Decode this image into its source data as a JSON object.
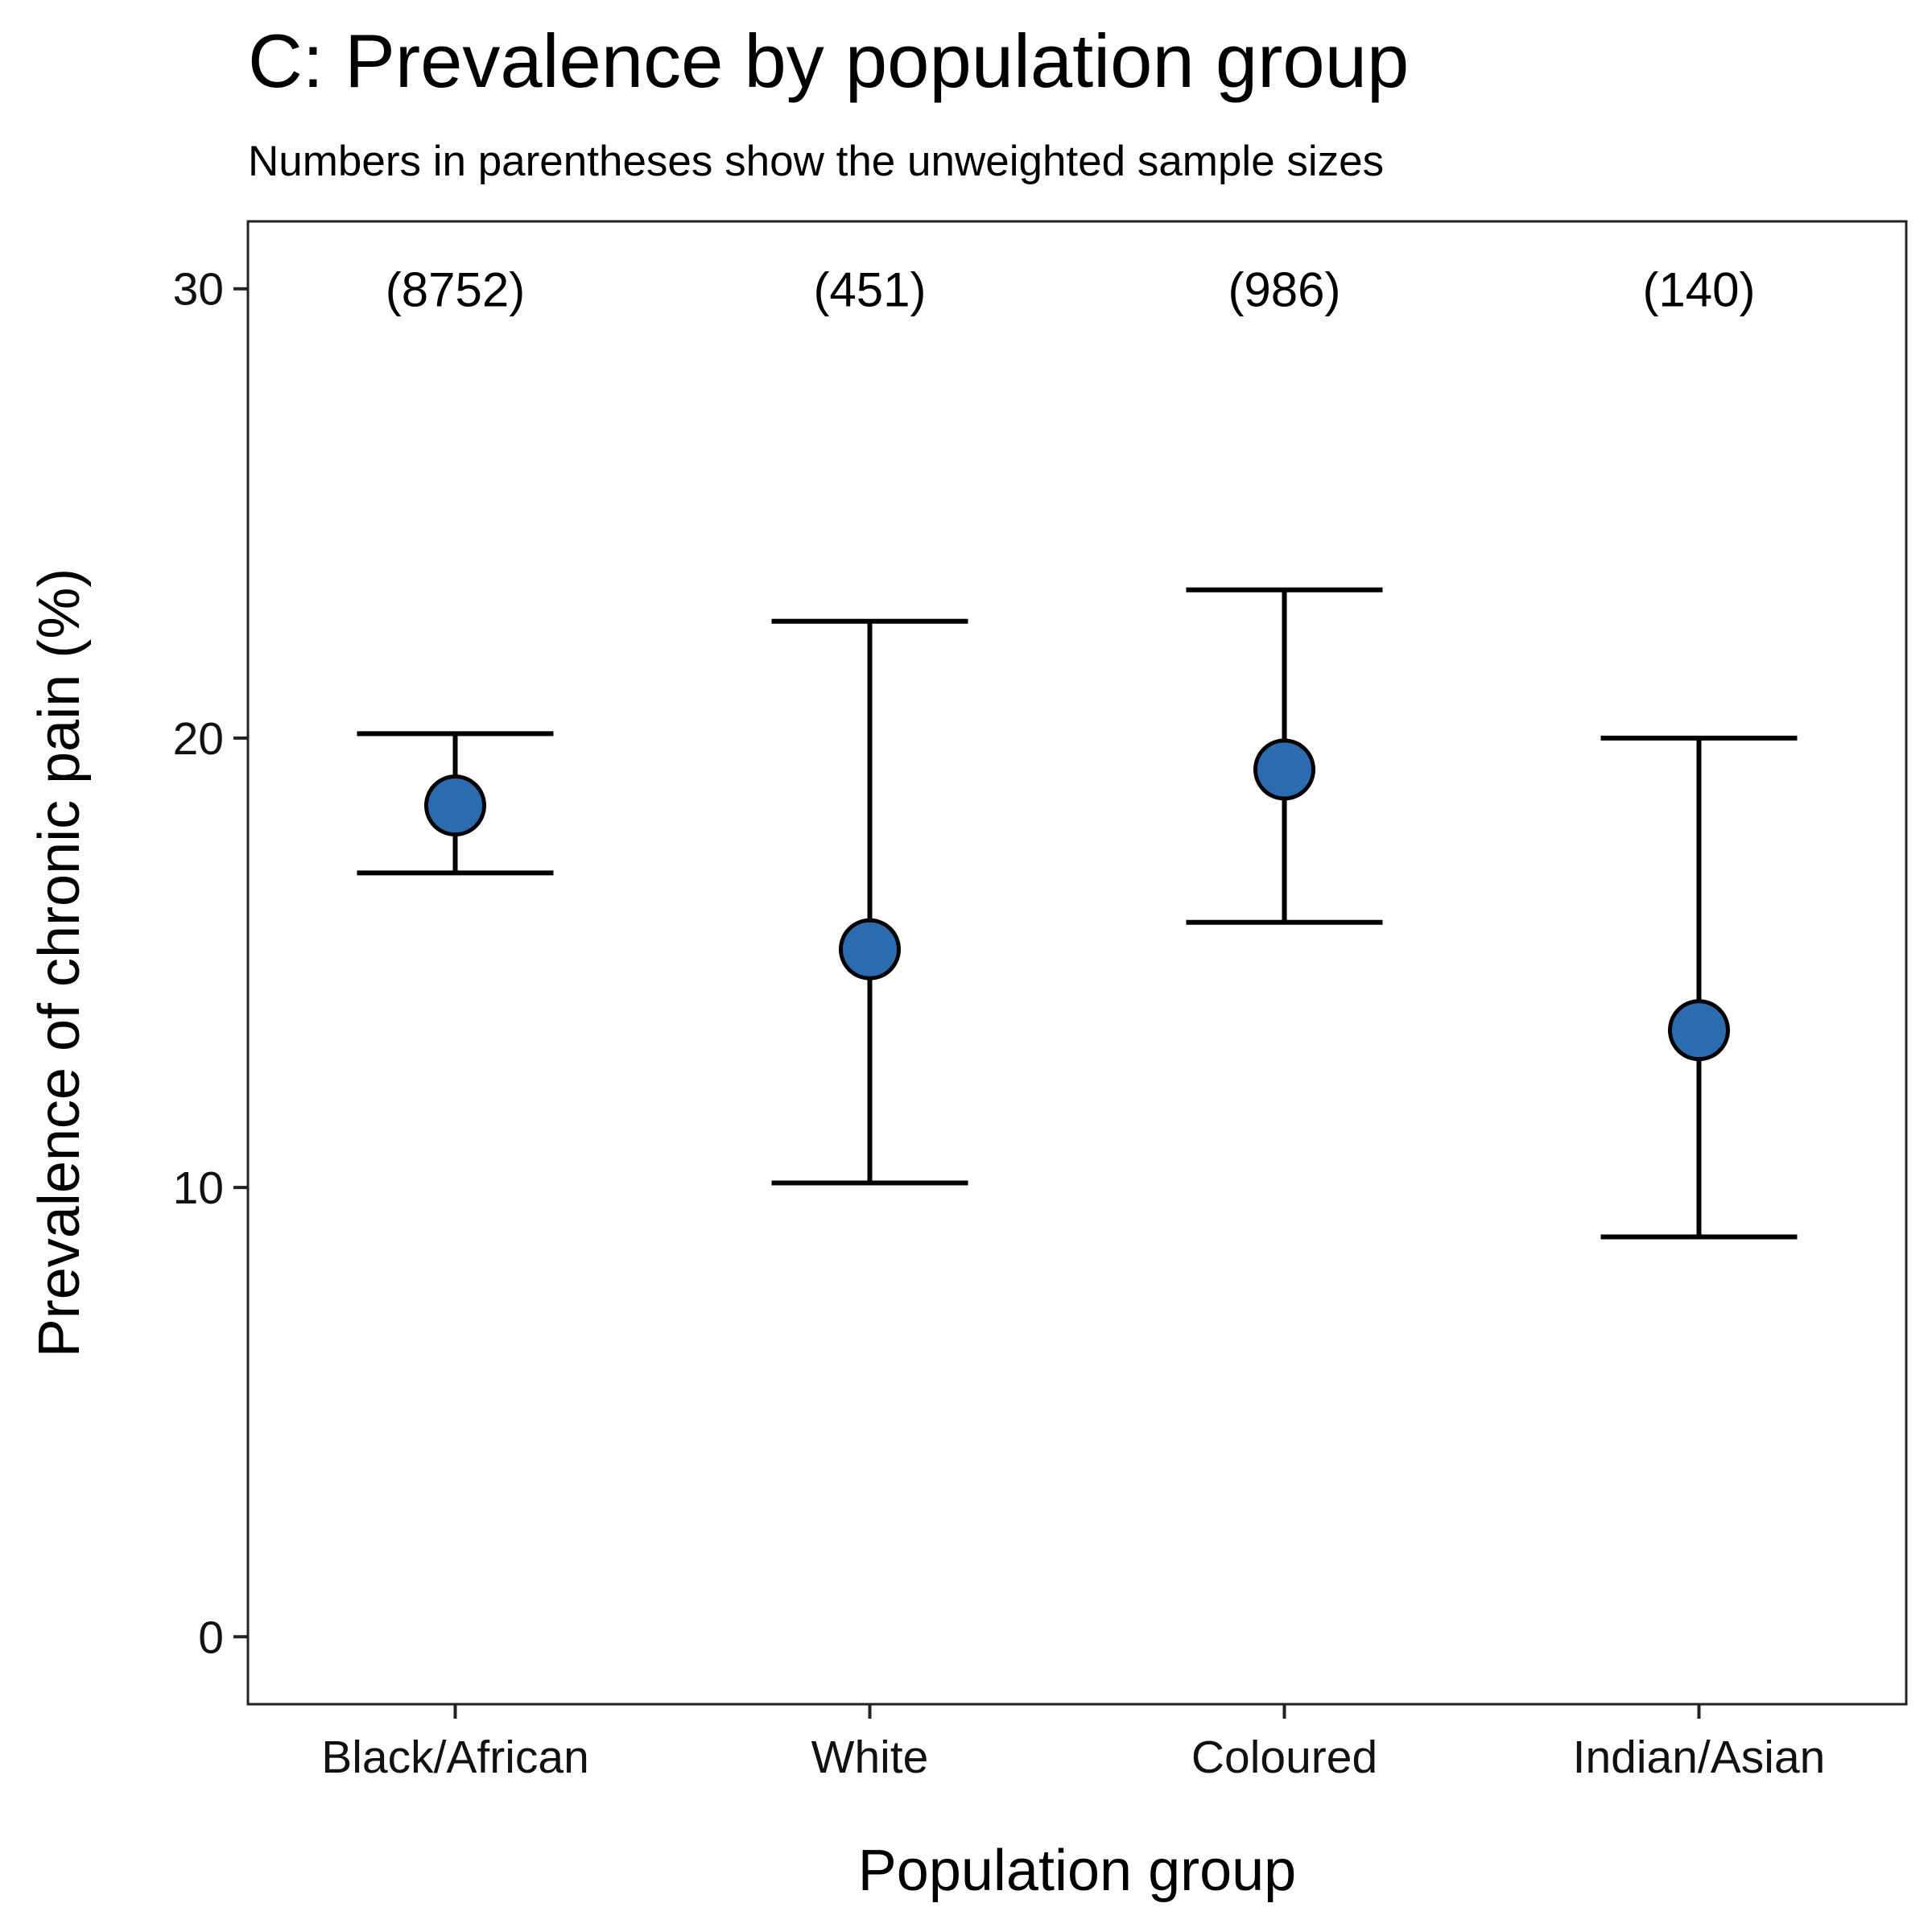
{
  "chart_data": {
    "type": "scatter",
    "title": "C: Prevalence by population group",
    "subtitle": "Numbers in parentheses show the unweighted sample sizes",
    "xlabel": "Population group",
    "ylabel": "Prevalence of chronic pain (%)",
    "categories": [
      "Black/African",
      "White",
      "Coloured",
      "Indian/Asian"
    ],
    "values": [
      18.5,
      15.3,
      19.3,
      13.5
    ],
    "ci_lower": [
      17.0,
      10.1,
      15.9,
      8.9
    ],
    "ci_upper": [
      20.1,
      22.6,
      23.3,
      20.0
    ],
    "sample_sizes": [
      "(8752)",
      "(451)",
      "(986)",
      "(140)"
    ],
    "yticks": [
      0,
      10,
      20,
      30
    ],
    "ylim": [
      -1.5,
      31.5
    ],
    "grid": false,
    "legend": "none",
    "point_color": "#2b6cb0",
    "error_bar_color": "#000000"
  }
}
